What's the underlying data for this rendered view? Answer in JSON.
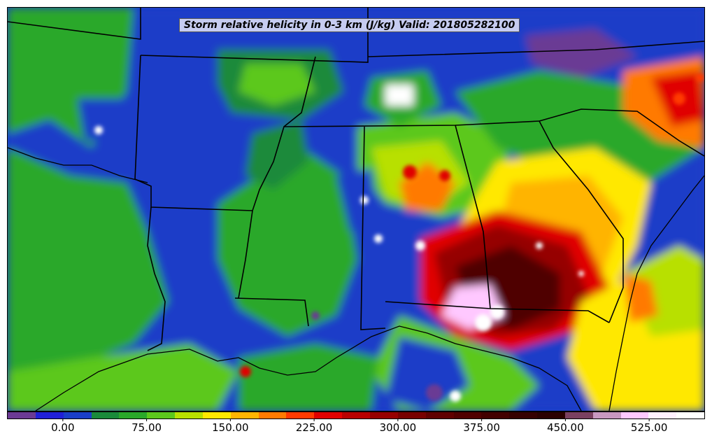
{
  "title": "Storm relative helicity in 0-3 km (J/kg) Valid: 201805282100",
  "colorbar": {
    "tick_labels": [
      "0.00",
      "75.00",
      "150.00",
      "225.00",
      "300.00",
      "375.00",
      "450.00",
      "525.00"
    ],
    "tick_values": [
      0,
      75,
      150,
      225,
      300,
      375,
      450,
      525
    ],
    "min": -50,
    "max": 575,
    "bin_colors": [
      "#6b3a94",
      "#2020d8",
      "#1a3ec8",
      "#1a8a3a",
      "#2aa82a",
      "#5cc81c",
      "#b8e000",
      "#ffe800",
      "#ffb400",
      "#ff7a00",
      "#ff3a00",
      "#e00000",
      "#b80000",
      "#960000",
      "#780000",
      "#600000",
      "#500000",
      "#420000",
      "#350000",
      "#2a0000",
      "#7a4060",
      "#c898c0",
      "#ffc8ff",
      "#fff0ff",
      "#ffffff"
    ]
  },
  "colors": {
    "background": "#1a3ec8",
    "border_lines": "#000000"
  }
}
